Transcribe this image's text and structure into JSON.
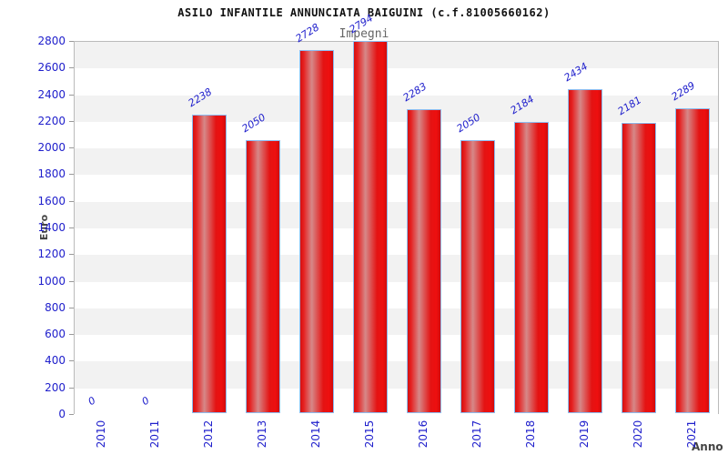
{
  "header": {
    "title": "ASILO INFANTILE ANNUNCIATA BAIGUINI (c.f.81005660162)",
    "subtitle": "Impegni"
  },
  "chart_data": {
    "type": "bar",
    "title": "ASILO INFANTILE ANNUNCIATA BAIGUINI (c.f.81005660162)",
    "subtitle": "Impegni",
    "xlabel": "Anno",
    "ylabel": "Euro",
    "categories": [
      "2010",
      "2011",
      "2012",
      "2013",
      "2014",
      "2015",
      "2016",
      "2017",
      "2018",
      "2019",
      "2020",
      "2021"
    ],
    "values": [
      0,
      0,
      2238,
      2050,
      2728,
      2794,
      2283,
      2050,
      2184,
      2434,
      2181,
      2289
    ],
    "bar_labels": [
      "0",
      "0",
      "2238",
      "2050",
      "2728",
      "2794",
      "2283",
      "2050",
      "2184",
      "2434",
      "2181",
      "2289"
    ],
    "ylim": [
      0,
      2800
    ],
    "ytick_step": 200,
    "grid": "alternating-bands",
    "legend": null,
    "colors": {
      "bar_fill_main": "#e41313",
      "bar_fill_highlight": "#d68888",
      "bar_border": "#8cbcf0",
      "tick_label": "#2020cc",
      "value_label": "#2020cc",
      "band_gray": "#f2f2f2",
      "plot_border": "#bbbbbb",
      "title_color": "#111111",
      "subtitle_color": "#666666",
      "axis_title_color": "#444444"
    }
  }
}
